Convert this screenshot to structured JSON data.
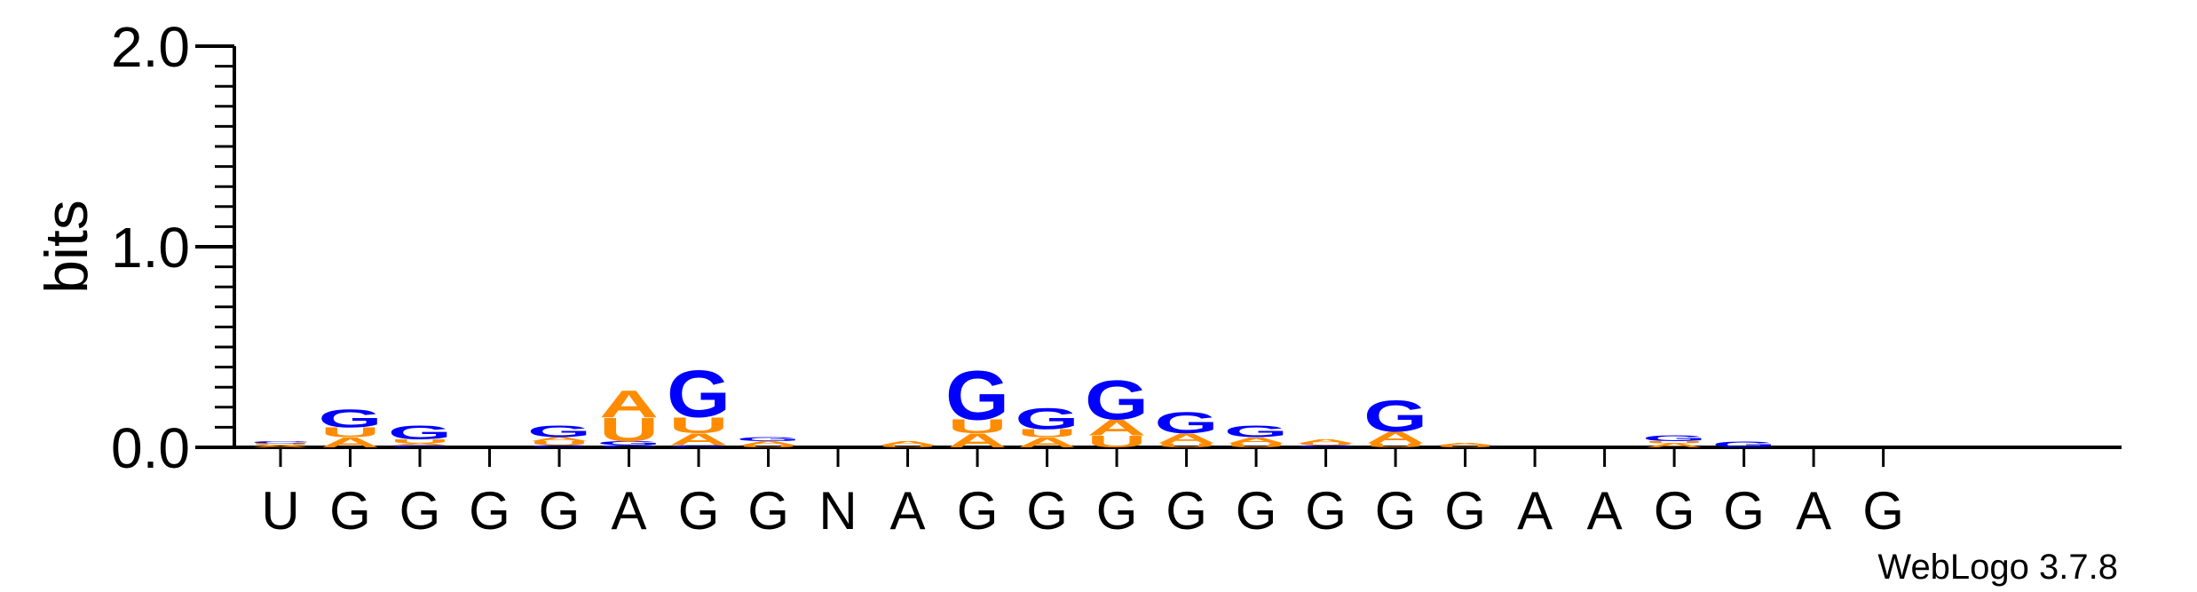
{
  "chart_data": {
    "type": "sequence-logo",
    "ylabel": "bits",
    "ylim": [
      0,
      2
    ],
    "yticks": [
      {
        "value": 0,
        "label": "0.0"
      },
      {
        "value": 1,
        "label": "1.0"
      },
      {
        "value": 2,
        "label": "2.0"
      }
    ],
    "colors": {
      "A": "#ff8c00",
      "U": "#ff8c00",
      "G": "#0000ff",
      "C": "#0000ff"
    },
    "footer": "WebLogo 3.7.8",
    "positions": [
      {
        "label": "U",
        "stack": [
          {
            "letter": "A",
            "bits": 0.01
          },
          {
            "letter": "U",
            "bits": 0.01
          },
          {
            "letter": "C",
            "bits": 0.01
          }
        ]
      },
      {
        "label": "G",
        "stack": [
          {
            "letter": "A",
            "bits": 0.05
          },
          {
            "letter": "U",
            "bits": 0.05
          },
          {
            "letter": "G",
            "bits": 0.09
          }
        ]
      },
      {
        "label": "G",
        "stack": [
          {
            "letter": "C",
            "bits": 0.01
          },
          {
            "letter": "A",
            "bits": 0.01
          },
          {
            "letter": "U",
            "bits": 0.02
          },
          {
            "letter": "G",
            "bits": 0.07
          }
        ]
      },
      {
        "label": "G",
        "stack": []
      },
      {
        "label": "G",
        "stack": [
          {
            "letter": "C",
            "bits": 0.01
          },
          {
            "letter": "U",
            "bits": 0.02
          },
          {
            "letter": "A",
            "bits": 0.02
          },
          {
            "letter": "G",
            "bits": 0.06
          }
        ]
      },
      {
        "label": "A",
        "stack": [
          {
            "letter": "C",
            "bits": 0.01
          },
          {
            "letter": "G",
            "bits": 0.02
          },
          {
            "letter": "U",
            "bits": 0.12
          },
          {
            "letter": "A",
            "bits": 0.14
          }
        ]
      },
      {
        "label": "G",
        "stack": [
          {
            "letter": "C",
            "bits": 0.01
          },
          {
            "letter": "A",
            "bits": 0.06
          },
          {
            "letter": "U",
            "bits": 0.08
          },
          {
            "letter": "G",
            "bits": 0.24
          }
        ]
      },
      {
        "label": "G",
        "stack": [
          {
            "letter": "U",
            "bits": 0.01
          },
          {
            "letter": "A",
            "bits": 0.02
          },
          {
            "letter": "G",
            "bits": 0.02
          }
        ]
      },
      {
        "label": "N",
        "stack": []
      },
      {
        "label": "A",
        "stack": [
          {
            "letter": "U",
            "bits": 0.01
          },
          {
            "letter": "A",
            "bits": 0.02
          }
        ]
      },
      {
        "label": "G",
        "stack": [
          {
            "letter": "A",
            "bits": 0.07
          },
          {
            "letter": "U",
            "bits": 0.07
          },
          {
            "letter": "G",
            "bits": 0.25
          }
        ]
      },
      {
        "label": "G",
        "stack": [
          {
            "letter": "A",
            "bits": 0.05
          },
          {
            "letter": "U",
            "bits": 0.04
          },
          {
            "letter": "G",
            "bits": 0.11
          }
        ]
      },
      {
        "label": "G",
        "stack": [
          {
            "letter": "U",
            "bits": 0.06
          },
          {
            "letter": "A",
            "bits": 0.08
          },
          {
            "letter": "G",
            "bits": 0.2
          }
        ]
      },
      {
        "label": "G",
        "stack": [
          {
            "letter": "U",
            "bits": 0.02
          },
          {
            "letter": "A",
            "bits": 0.05
          },
          {
            "letter": "G",
            "bits": 0.11
          }
        ]
      },
      {
        "label": "G",
        "stack": [
          {
            "letter": "U",
            "bits": 0.02
          },
          {
            "letter": "A",
            "bits": 0.03
          },
          {
            "letter": "G",
            "bits": 0.06
          }
        ]
      },
      {
        "label": "G",
        "stack": [
          {
            "letter": "C",
            "bits": 0.01
          },
          {
            "letter": "U",
            "bits": 0.01
          },
          {
            "letter": "A",
            "bits": 0.02
          }
        ]
      },
      {
        "label": "G",
        "stack": [
          {
            "letter": "U",
            "bits": 0.02
          },
          {
            "letter": "A",
            "bits": 0.06
          },
          {
            "letter": "G",
            "bits": 0.16
          }
        ]
      },
      {
        "label": "G",
        "stack": [
          {
            "letter": "U",
            "bits": 0.01
          },
          {
            "letter": "A",
            "bits": 0.01
          }
        ]
      },
      {
        "label": "A",
        "stack": []
      },
      {
        "label": "A",
        "stack": []
      },
      {
        "label": "G",
        "stack": [
          {
            "letter": "A",
            "bits": 0.02
          },
          {
            "letter": "U",
            "bits": 0.01
          },
          {
            "letter": "G",
            "bits": 0.03
          }
        ]
      },
      {
        "label": "G",
        "stack": [
          {
            "letter": "G",
            "bits": 0.03
          }
        ]
      },
      {
        "label": "A",
        "stack": []
      },
      {
        "label": "G",
        "stack": []
      }
    ]
  }
}
